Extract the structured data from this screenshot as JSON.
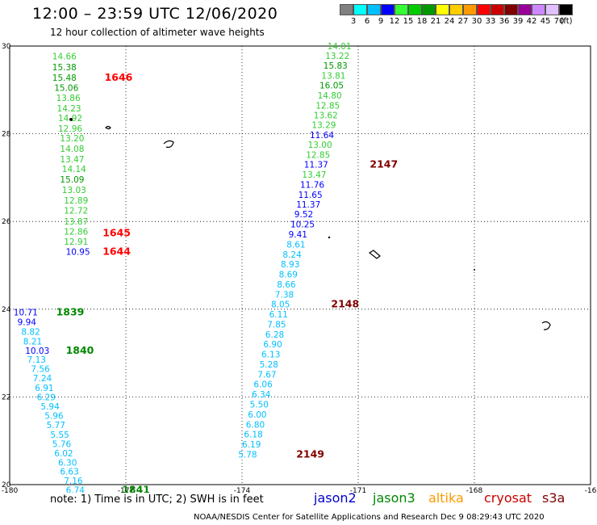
{
  "header": {
    "title": "12:00 – 23:59 UTC 12/06/2020",
    "subtitle": "12 hour collection of altimeter wave heights"
  },
  "scale": {
    "labels": [
      "3",
      "6",
      "9",
      "12",
      "15",
      "18",
      "21",
      "24",
      "27",
      "30",
      "33",
      "36",
      "39",
      "42",
      "45",
      "70",
      "(ft)"
    ],
    "colors": [
      "#808080",
      "#00ffff",
      "#00bfff",
      "#0000ff",
      "#33ff33",
      "#00cc00",
      "#009900",
      "#ffff00",
      "#ffcc00",
      "#ff9900",
      "#ff0000",
      "#cc0000",
      "#800000",
      "#990099",
      "#cc88ff",
      "#e0c0ff",
      "#000000"
    ]
  },
  "axes": {
    "lon_labels": [
      "-180",
      "-177",
      "-174",
      "-171",
      "-168",
      "-16"
    ],
    "lat_labels": [
      "30",
      "28",
      "26",
      "24",
      "22",
      "20"
    ]
  },
  "map": {
    "lon_range": [
      -180,
      -165
    ],
    "lat_range": [
      20,
      30
    ]
  },
  "tracks": [
    {
      "points": [
        {
          "v": "14.66",
          "lon": -178.9,
          "lat": 29.77,
          "c": "#33cc33"
        },
        {
          "v": "15.38",
          "lon": -178.9,
          "lat": 29.52,
          "c": "#009900"
        },
        {
          "v": "15.48",
          "lon": -178.9,
          "lat": 29.28,
          "c": "#009900"
        },
        {
          "v": "15.06",
          "lon": -178.85,
          "lat": 29.05,
          "c": "#009900"
        },
        {
          "v": "13.86",
          "lon": -178.8,
          "lat": 28.82,
          "c": "#33cc33"
        },
        {
          "v": "14.23",
          "lon": -178.78,
          "lat": 28.58,
          "c": "#33cc33"
        },
        {
          "v": "14.92",
          "lon": -178.75,
          "lat": 28.36,
          "c": "#33cc33"
        },
        {
          "v": "12.96",
          "lon": -178.75,
          "lat": 28.12,
          "c": "#33cc33"
        },
        {
          "v": "13.20",
          "lon": -178.7,
          "lat": 27.9,
          "c": "#33cc33"
        },
        {
          "v": "14.08",
          "lon": -178.7,
          "lat": 27.66,
          "c": "#33cc33"
        },
        {
          "v": "13.47",
          "lon": -178.7,
          "lat": 27.42,
          "c": "#33cc33"
        },
        {
          "v": "14.14",
          "lon": -178.65,
          "lat": 27.2,
          "c": "#33cc33"
        },
        {
          "v": "15.09",
          "lon": -178.7,
          "lat": 26.96,
          "c": "#009900"
        },
        {
          "v": "13.03",
          "lon": -178.65,
          "lat": 26.72,
          "c": "#33cc33"
        },
        {
          "v": "12.89",
          "lon": -178.6,
          "lat": 26.48,
          "c": "#33cc33"
        },
        {
          "v": "12.72",
          "lon": -178.6,
          "lat": 26.25,
          "c": "#33cc33"
        },
        {
          "v": "13.87",
          "lon": -178.6,
          "lat": 26.0,
          "c": "#33cc33"
        },
        {
          "v": "12.86",
          "lon": -178.6,
          "lat": 25.77,
          "c": "#33cc33"
        },
        {
          "v": "12.91",
          "lon": -178.6,
          "lat": 25.54,
          "c": "#33cc33"
        },
        {
          "v": "10.95",
          "lon": -178.55,
          "lat": 25.31,
          "c": "#0000ff"
        }
      ]
    },
    {
      "points": [
        {
          "v": "10.71",
          "lon": -179.9,
          "lat": 23.93,
          "c": "#0000ff"
        },
        {
          "v": "9.94",
          "lon": -179.8,
          "lat": 23.71,
          "c": "#0000ff"
        },
        {
          "v": "8.82",
          "lon": -179.7,
          "lat": 23.49,
          "c": "#00bfff"
        },
        {
          "v": "8.21",
          "lon": -179.65,
          "lat": 23.27,
          "c": "#00bfff"
        },
        {
          "v": "10.03",
          "lon": -179.6,
          "lat": 23.06,
          "c": "#0000ff"
        },
        {
          "v": "7.13",
          "lon": -179.55,
          "lat": 22.85,
          "c": "#00bfff"
        },
        {
          "v": "7.56",
          "lon": -179.45,
          "lat": 22.64,
          "c": "#00bfff"
        },
        {
          "v": "7.24",
          "lon": -179.4,
          "lat": 22.43,
          "c": "#00bfff"
        },
        {
          "v": "6.91",
          "lon": -179.35,
          "lat": 22.21,
          "c": "#00bfff"
        },
        {
          "v": "6.29",
          "lon": -179.3,
          "lat": 22.0,
          "c": "#00bfff"
        },
        {
          "v": "5.94",
          "lon": -179.2,
          "lat": 21.79,
          "c": "#00bfff"
        },
        {
          "v": "5.96",
          "lon": -179.1,
          "lat": 21.57,
          "c": "#00bfff"
        },
        {
          "v": "5.77",
          "lon": -179.05,
          "lat": 21.36,
          "c": "#00bfff"
        },
        {
          "v": "5.55",
          "lon": -178.95,
          "lat": 21.14,
          "c": "#00bfff"
        },
        {
          "v": "5.76",
          "lon": -178.9,
          "lat": 20.93,
          "c": "#00bfff"
        },
        {
          "v": "6.02",
          "lon": -178.85,
          "lat": 20.72,
          "c": "#00bfff"
        },
        {
          "v": "6.30",
          "lon": -178.75,
          "lat": 20.51,
          "c": "#00bfff"
        },
        {
          "v": "6.63",
          "lon": -178.7,
          "lat": 20.3,
          "c": "#00bfff"
        },
        {
          "v": "7.16",
          "lon": -178.6,
          "lat": 20.09,
          "c": "#00bfff"
        },
        {
          "v": "6.74",
          "lon": -178.55,
          "lat": 19.88,
          "c": "#00bfff"
        }
      ]
    },
    {
      "points": [
        {
          "v": "14.01",
          "lon": -171.8,
          "lat": 30.0,
          "c": "#33cc33"
        },
        {
          "v": "13.22",
          "lon": -171.85,
          "lat": 29.78,
          "c": "#33cc33"
        },
        {
          "v": "15.83",
          "lon": -171.9,
          "lat": 29.56,
          "c": "#009900"
        },
        {
          "v": "13.81",
          "lon": -171.95,
          "lat": 29.33,
          "c": "#33cc33"
        },
        {
          "v": "16.05",
          "lon": -172.0,
          "lat": 29.11,
          "c": "#009900"
        },
        {
          "v": "14.80",
          "lon": -172.05,
          "lat": 28.88,
          "c": "#33cc33"
        },
        {
          "v": "12.85",
          "lon": -172.1,
          "lat": 28.65,
          "c": "#33cc33"
        },
        {
          "v": "13.62",
          "lon": -172.15,
          "lat": 28.43,
          "c": "#33cc33"
        },
        {
          "v": "13.29",
          "lon": -172.2,
          "lat": 28.2,
          "c": "#33cc33"
        },
        {
          "v": "11.64",
          "lon": -172.25,
          "lat": 27.97,
          "c": "#0000ff"
        },
        {
          "v": "13.00",
          "lon": -172.3,
          "lat": 27.75,
          "c": "#33cc33"
        },
        {
          "v": "12.85",
          "lon": -172.35,
          "lat": 27.52,
          "c": "#33cc33"
        },
        {
          "v": "11.37",
          "lon": -172.4,
          "lat": 27.3,
          "c": "#0000ff"
        },
        {
          "v": "13.47",
          "lon": -172.45,
          "lat": 27.07,
          "c": "#33cc33"
        },
        {
          "v": "11.76",
          "lon": -172.5,
          "lat": 26.84,
          "c": "#0000ff"
        },
        {
          "v": "11.65",
          "lon": -172.55,
          "lat": 26.61,
          "c": "#0000ff"
        },
        {
          "v": "11.37",
          "lon": -172.6,
          "lat": 26.39,
          "c": "#0000ff"
        },
        {
          "v": "9.52",
          "lon": -172.65,
          "lat": 26.17,
          "c": "#0000ff"
        },
        {
          "v": "10.25",
          "lon": -172.75,
          "lat": 25.94,
          "c": "#0000ff"
        },
        {
          "v": "9.41",
          "lon": -172.8,
          "lat": 25.71,
          "c": "#0000ff"
        },
        {
          "v": "8.61",
          "lon": -172.85,
          "lat": 25.48,
          "c": "#00bfff"
        },
        {
          "v": "8.24",
          "lon": -172.95,
          "lat": 25.25,
          "c": "#00bfff"
        },
        {
          "v": "8.93",
          "lon": -173.0,
          "lat": 25.03,
          "c": "#00bfff"
        },
        {
          "v": "8.69",
          "lon": -173.05,
          "lat": 24.8,
          "c": "#00bfff"
        },
        {
          "v": "8.66",
          "lon": -173.1,
          "lat": 24.57,
          "c": "#00bfff"
        },
        {
          "v": "7.38",
          "lon": -173.15,
          "lat": 24.34,
          "c": "#00bfff"
        },
        {
          "v": "8.05",
          "lon": -173.25,
          "lat": 24.12,
          "c": "#00bfff"
        },
        {
          "v": "6.11",
          "lon": -173.3,
          "lat": 23.89,
          "c": "#00bfff"
        },
        {
          "v": "7.85",
          "lon": -173.35,
          "lat": 23.66,
          "c": "#00bfff"
        },
        {
          "v": "6.28",
          "lon": -173.4,
          "lat": 23.43,
          "c": "#00bfff"
        },
        {
          "v": "6.90",
          "lon": -173.45,
          "lat": 23.2,
          "c": "#00bfff"
        },
        {
          "v": "6.13",
          "lon": -173.5,
          "lat": 22.97,
          "c": "#00bfff"
        },
        {
          "v": "5.28",
          "lon": -173.55,
          "lat": 22.74,
          "c": "#00bfff"
        },
        {
          "v": "7.67",
          "lon": -173.6,
          "lat": 22.51,
          "c": "#00bfff"
        },
        {
          "v": "6.06",
          "lon": -173.7,
          "lat": 22.29,
          "c": "#00bfff"
        },
        {
          "v": "6.34",
          "lon": -173.75,
          "lat": 22.06,
          "c": "#00bfff"
        },
        {
          "v": "5.50",
          "lon": -173.8,
          "lat": 21.83,
          "c": "#00bfff"
        },
        {
          "v": "6.00",
          "lon": -173.85,
          "lat": 21.6,
          "c": "#00bfff"
        },
        {
          "v": "6.80",
          "lon": -173.9,
          "lat": 21.37,
          "c": "#00bfff"
        },
        {
          "v": "6.18",
          "lon": -173.95,
          "lat": 21.15,
          "c": "#00bfff"
        },
        {
          "v": "6.19",
          "lon": -174.0,
          "lat": 20.92,
          "c": "#00bfff"
        },
        {
          "v": "5.78",
          "lon": -174.1,
          "lat": 20.69,
          "c": "#00bfff"
        }
      ]
    }
  ],
  "times": [
    {
      "t": "1646",
      "lon": -177.55,
      "lat": 29.28,
      "c": "#ff0000"
    },
    {
      "t": "1645",
      "lon": -177.6,
      "lat": 25.74,
      "c": "#ff0000"
    },
    {
      "t": "1644",
      "lon": -177.6,
      "lat": 25.31,
      "c": "#ff0000"
    },
    {
      "t": "1839",
      "lon": -178.8,
      "lat": 23.93,
      "c": "#008800"
    },
    {
      "t": "1840",
      "lon": -178.55,
      "lat": 23.06,
      "c": "#008800"
    },
    {
      "t": "1841",
      "lon": -177.1,
      "lat": 19.88,
      "c": "#008800"
    },
    {
      "t": "2147",
      "lon": -170.7,
      "lat": 27.3,
      "c": "#800000"
    },
    {
      "t": "2148",
      "lon": -171.7,
      "lat": 24.12,
      "c": "#800000"
    },
    {
      "t": "2149",
      "lon": -172.6,
      "lat": 20.69,
      "c": "#800000"
    }
  ],
  "footer": {
    "note": "note:  1) Time is in UTC;  2) SWH is in feet",
    "legend": [
      {
        "name": "jason2",
        "color": "#0000cc"
      },
      {
        "name": "jason3",
        "color": "#008800"
      },
      {
        "name": "altika",
        "color": "#ff9900"
      },
      {
        "name": "cryosat",
        "color": "#cc0000"
      },
      {
        "name": "s3a",
        "color": "#800000"
      }
    ],
    "credit": "NOAA/NESDIS Center for Satellite Applications and Research     Dec  9 08:29:43 UTC 2020"
  }
}
